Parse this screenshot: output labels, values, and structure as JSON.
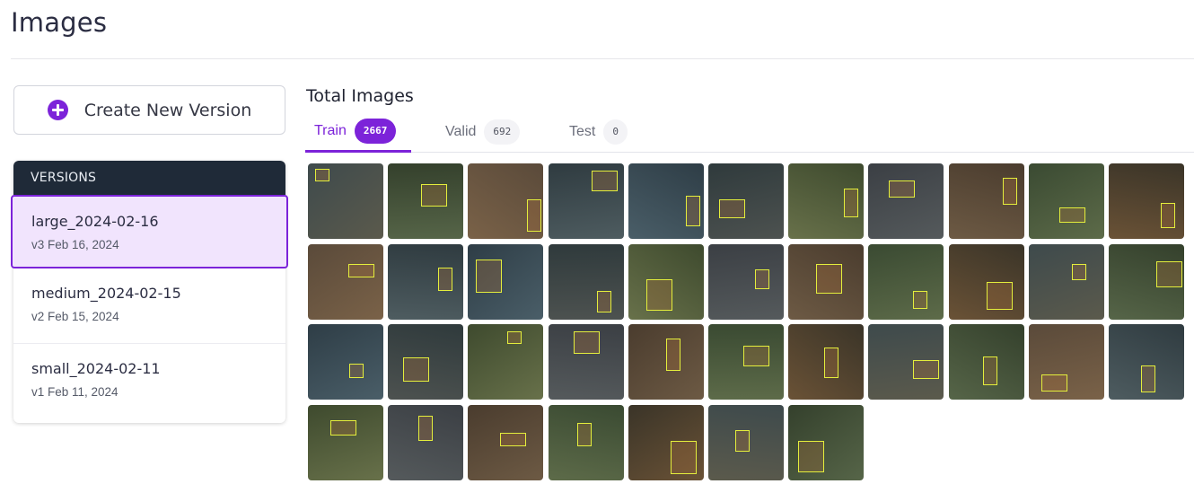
{
  "page": {
    "title": "Images"
  },
  "actions": {
    "create_version_label": "Create New Version"
  },
  "versions": {
    "header": "VERSIONS",
    "items": [
      {
        "name": "large_2024-02-16",
        "date": "v3 Feb 16, 2024",
        "selected": true
      },
      {
        "name": "medium_2024-02-15",
        "date": "v2 Feb 15, 2024",
        "selected": false
      },
      {
        "name": "small_2024-02-11",
        "date": "v1 Feb 11, 2024",
        "selected": false
      }
    ]
  },
  "images": {
    "total_label": "Total Images",
    "tabs": [
      {
        "label": "Train",
        "count": "2667",
        "active": true
      },
      {
        "label": "Valid",
        "count": "692",
        "active": false
      },
      {
        "label": "Test",
        "count": "0",
        "active": false
      }
    ],
    "thumbnail_count": 40
  },
  "colors": {
    "accent": "#7c23d9",
    "header_bg": "#1f2a38",
    "selected_bg": "#f1e4fd",
    "bbox": "#e4ee3c"
  }
}
